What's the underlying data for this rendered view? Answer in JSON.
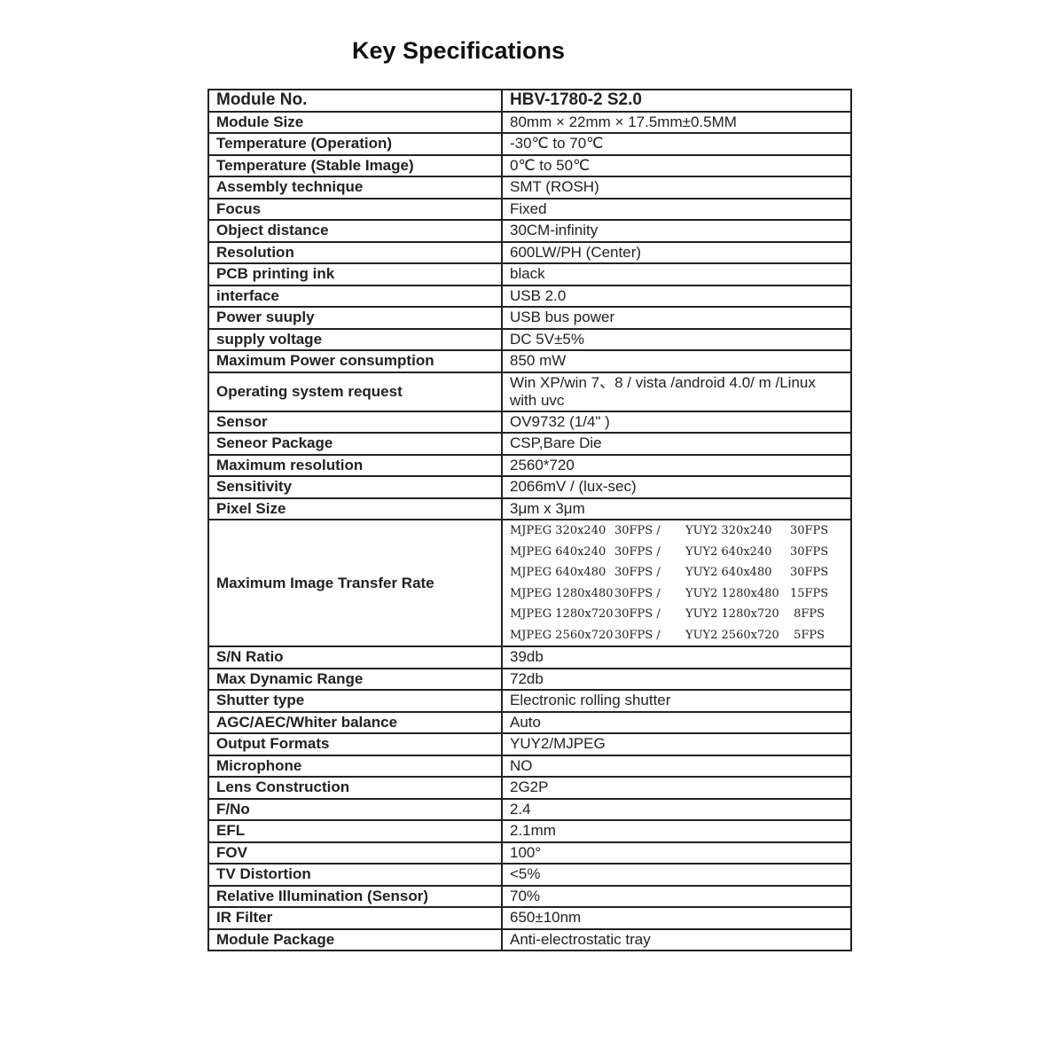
{
  "title": "Key Specifications",
  "header": {
    "key": "Module No.",
    "value": "HBV-1780-2 S2.0"
  },
  "rows_before_os": [
    {
      "key": "Module Size",
      "value": "80mm × 22mm × 17.5mm±0.5MM"
    },
    {
      "key": "Temperature (Operation)",
      "value": "-30℃ to 70℃"
    },
    {
      "key": "Temperature (Stable Image)",
      "value": "0℃ to 50℃"
    },
    {
      "key": "Assembly technique",
      "value": "SMT (ROSH)"
    },
    {
      "key": "Focus",
      "value": "Fixed"
    },
    {
      "key": "Object distance",
      "value": "30CM-infinity"
    },
    {
      "key": "Resolution",
      "value": "600LW/PH (Center)"
    },
    {
      "key": "PCB printing ink",
      "value": "black"
    },
    {
      "key": "interface",
      "value": "USB 2.0"
    },
    {
      "key": "Power suuply",
      "value": "USB bus power"
    },
    {
      "key": "supply voltage",
      "value": "DC 5V±5%"
    },
    {
      "key": "Maximum Power consumption",
      "value": "850 mW"
    }
  ],
  "os_row": {
    "key": "Operating system request",
    "value": "Win XP/win 7、8 / vista /android 4.0/ m      /Linux with uvc"
  },
  "rows_before_rate": [
    {
      "key": "Sensor",
      "value": "OV9732 (1/4\" )"
    },
    {
      "key": "Seneor Package",
      "value": "CSP,Bare Die"
    },
    {
      "key": "Maximum resolution",
      "value": "2560*720"
    },
    {
      "key": "Sensitivity",
      "value": "2066mV / (lux-sec)"
    },
    {
      "key": "Pixel Size",
      "value": "3μm x 3μm"
    }
  ],
  "rate_row": {
    "key": "Maximum Image Transfer Rate",
    "lines": [
      [
        "MJPEG 320x240",
        "30FPS /",
        "YUY2 320x240",
        "30FPS"
      ],
      [
        "MJPEG 640x240",
        "30FPS /",
        "YUY2 640x240",
        "30FPS"
      ],
      [
        "MJPEG 640x480",
        "30FPS /",
        "YUY2 640x480",
        "30FPS"
      ],
      [
        "MJPEG 1280x480",
        "30FPS /",
        "YUY2 1280x480",
        "15FPS"
      ],
      [
        "MJPEG 1280x720",
        "30FPS /",
        "YUY2 1280x720",
        " 8FPS"
      ],
      [
        "MJPEG 2560x720",
        "30FPS /",
        "YUY2 2560x720",
        " 5FPS"
      ]
    ]
  },
  "rows_after": [
    {
      "key": "S/N Ratio",
      "value": "39db"
    },
    {
      "key": "Max Dynamic Range",
      "value": "72db"
    },
    {
      "key": "Shutter type",
      "value": "Electronic rolling shutter"
    },
    {
      "key": "AGC/AEC/Whiter balance",
      "value": "Auto"
    },
    {
      "key": "Output Formats",
      "value": "YUY2/MJPEG"
    },
    {
      "key": "Microphone",
      "value": "NO"
    },
    {
      "key": "Lens Construction",
      "value": "2G2P"
    },
    {
      "key": "F/No",
      "value": "2.4"
    },
    {
      "key": "EFL",
      "value": "2.1mm"
    },
    {
      "key": "FOV",
      "value": "100°"
    },
    {
      "key": "TV Distortion",
      "value": "<5%"
    },
    {
      "key": "Relative Illumination (Sensor)",
      "value": "70%"
    },
    {
      "key": "IR Filter",
      "value": "650±10nm"
    },
    {
      "key": "Module Package",
      "value": "Anti-electrostatic tray"
    }
  ]
}
